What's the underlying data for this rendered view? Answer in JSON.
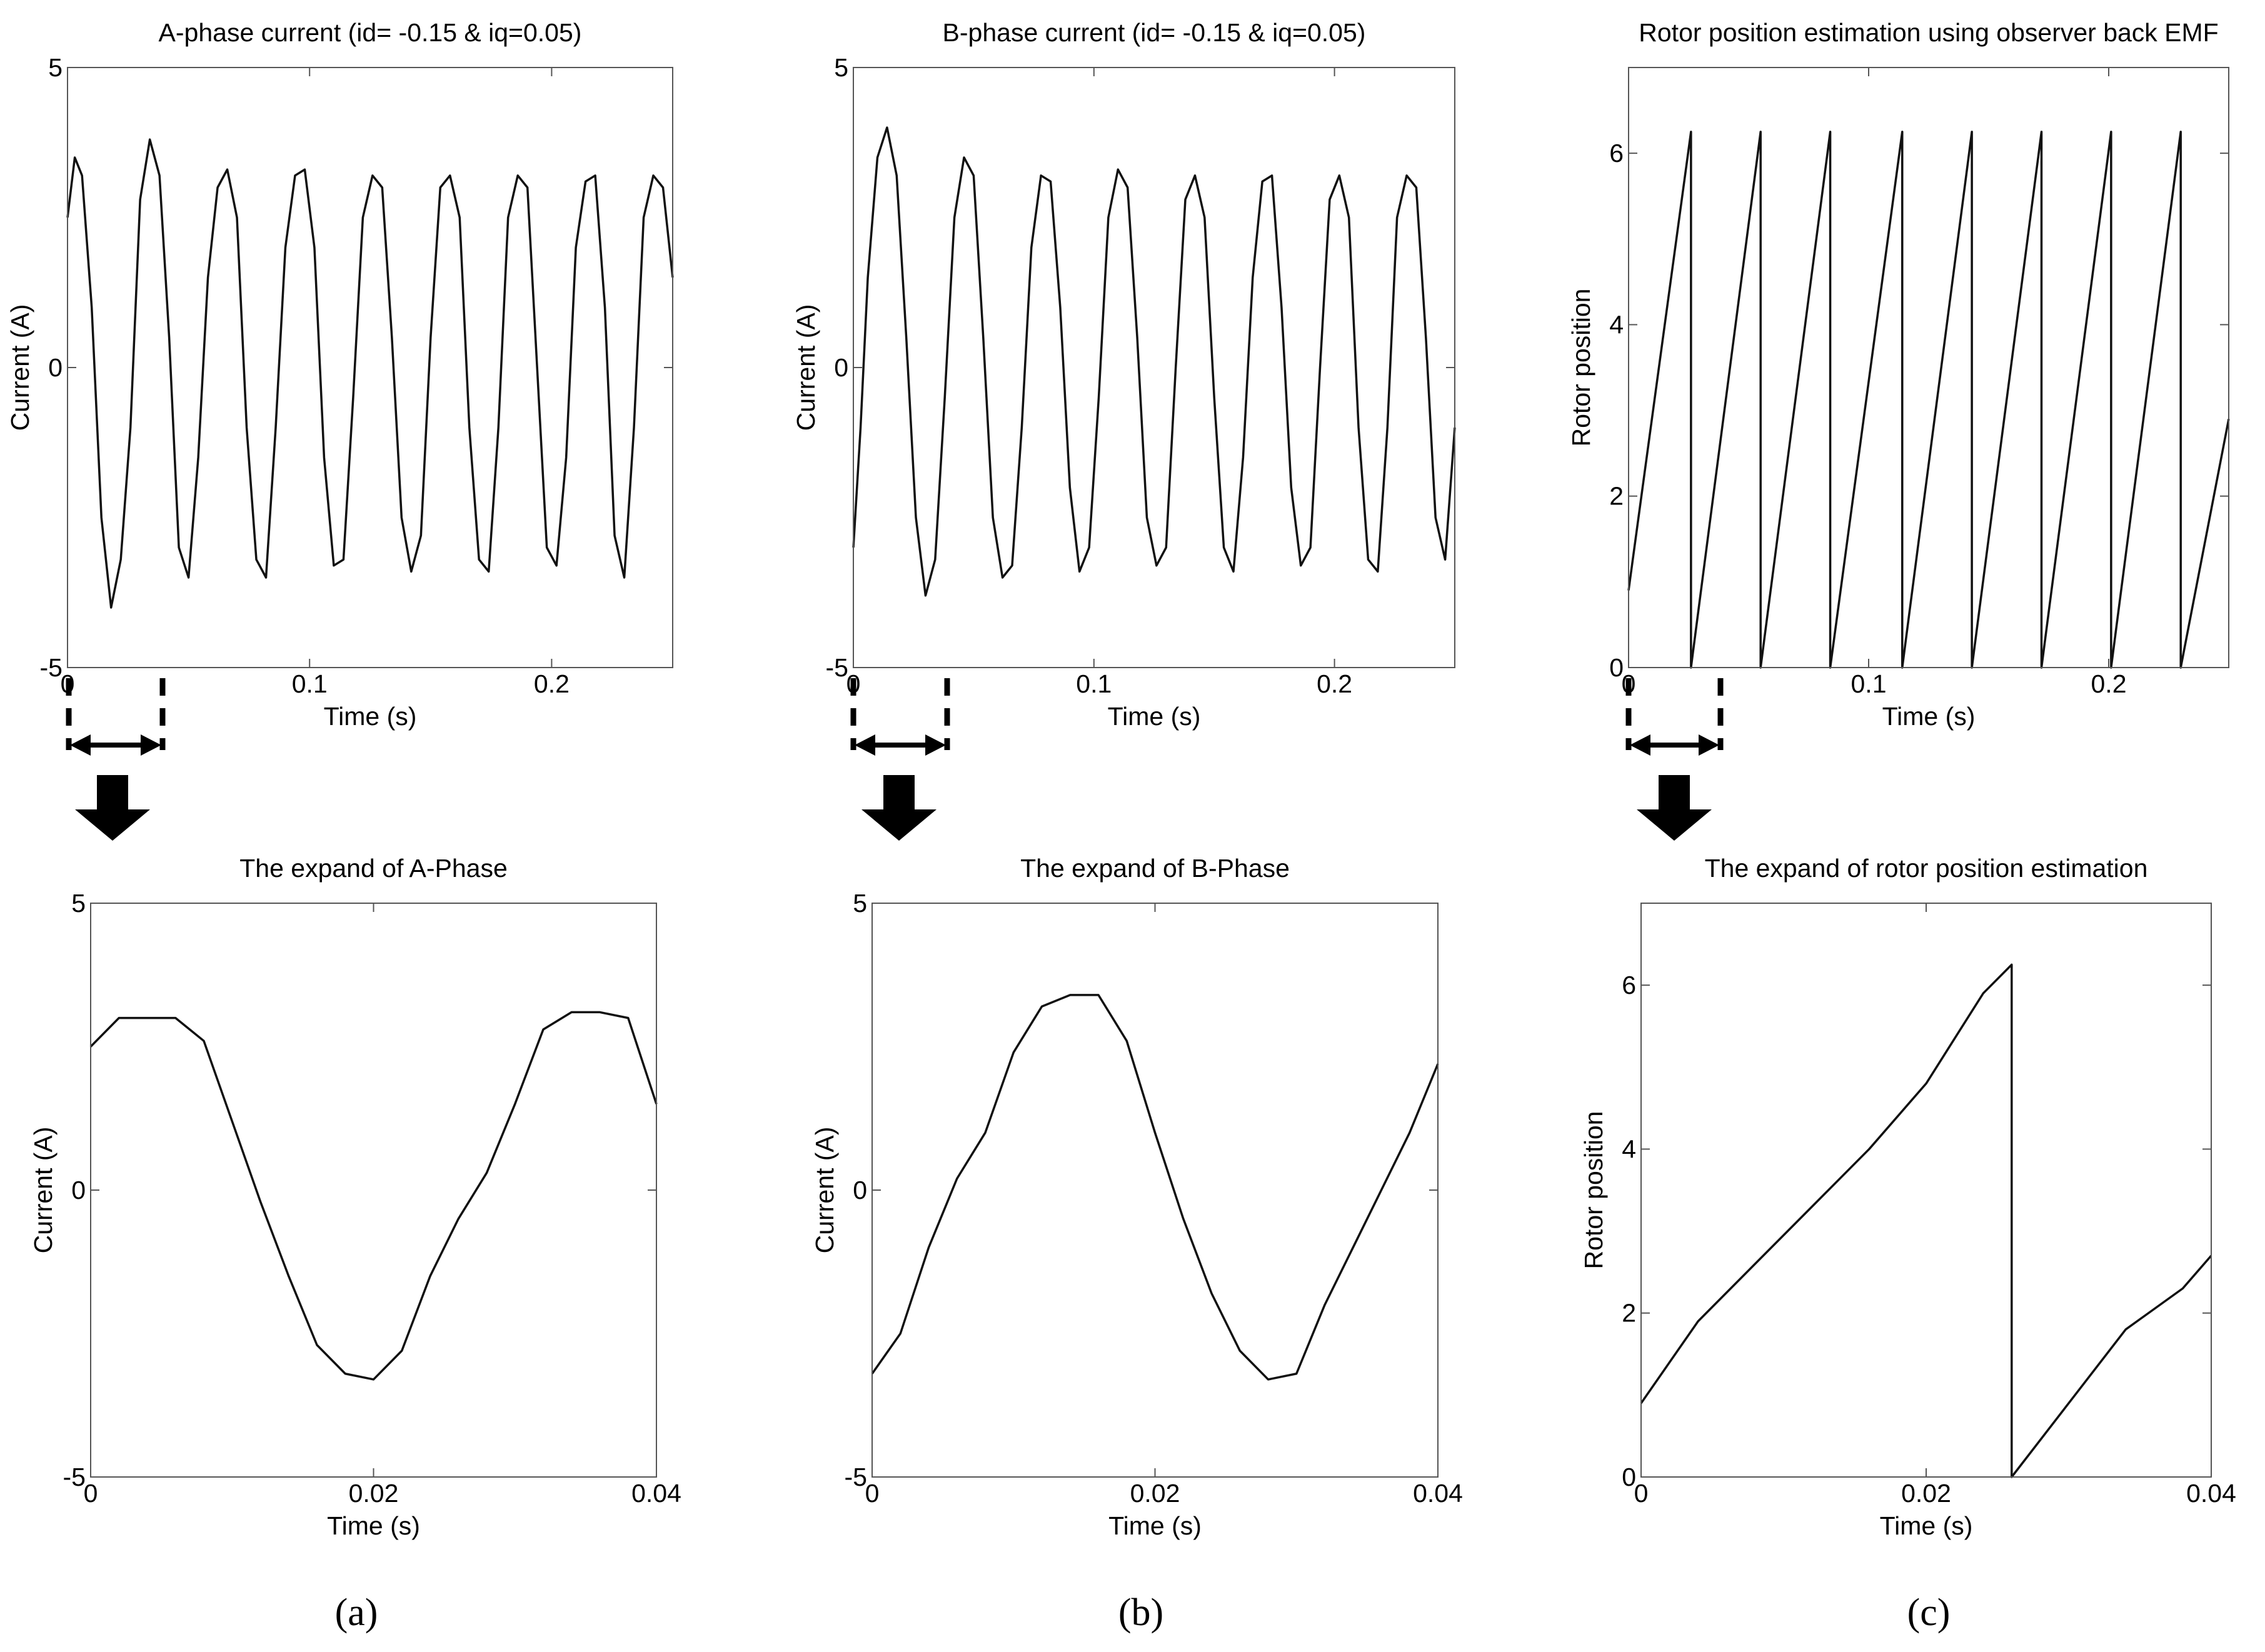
{
  "figure": {
    "captions": [
      "(a)",
      "(b)",
      "(c)"
    ]
  },
  "chart_data": [
    {
      "id": "a-top",
      "type": "line",
      "title": "A-phase current (id= -0.15 & iq=0.05)",
      "xlabel": "Time (s)",
      "ylabel": "Current (A)",
      "xlim": [
        0,
        0.25
      ],
      "ylim": [
        -5,
        5
      ],
      "xticks": [
        0,
        0.1,
        0.2
      ],
      "xtick_labels": [
        "0",
        "0.1",
        "0.2"
      ],
      "yticks": [
        -5,
        0,
        5
      ],
      "ytick_labels": [
        "-5",
        "0",
        "5"
      ],
      "series": [
        {
          "x": [
            0,
            0.003,
            0.006,
            0.01,
            0.014,
            0.018,
            0.022,
            0.026,
            0.03,
            0.034,
            0.038,
            0.042,
            0.046,
            0.05,
            0.054,
            0.058,
            0.062,
            0.066,
            0.07,
            0.074,
            0.078,
            0.082,
            0.086,
            0.09,
            0.094,
            0.098,
            0.102,
            0.106,
            0.11,
            0.114,
            0.118,
            0.122,
            0.126,
            0.13,
            0.134,
            0.138,
            0.142,
            0.146,
            0.15,
            0.154,
            0.158,
            0.162,
            0.166,
            0.17,
            0.174,
            0.178,
            0.182,
            0.186,
            0.19,
            0.194,
            0.198,
            0.202,
            0.206,
            0.21,
            0.214,
            0.218,
            0.222,
            0.226,
            0.23,
            0.234,
            0.238,
            0.242,
            0.246,
            0.25
          ],
          "y": [
            2.5,
            3.5,
            3.2,
            1.0,
            -2.5,
            -4.0,
            -3.2,
            -1.0,
            2.8,
            3.8,
            3.2,
            0.5,
            -3.0,
            -3.5,
            -1.5,
            1.5,
            3.0,
            3.3,
            2.5,
            -1.0,
            -3.2,
            -3.5,
            -1.0,
            2.0,
            3.2,
            3.3,
            2.0,
            -1.5,
            -3.3,
            -3.2,
            -0.5,
            2.5,
            3.2,
            3.0,
            0.5,
            -2.5,
            -3.4,
            -2.8,
            0.5,
            3.0,
            3.2,
            2.5,
            -1.0,
            -3.2,
            -3.4,
            -1.0,
            2.5,
            3.2,
            3.0,
            0.0,
            -3.0,
            -3.3,
            -1.5,
            2.0,
            3.1,
            3.2,
            1.0,
            -2.8,
            -3.5,
            -1.0,
            2.5,
            3.2,
            3.0,
            1.5
          ]
        }
      ]
    },
    {
      "id": "b-top",
      "type": "line",
      "title": "B-phase current (id= -0.15 & iq=0.05)",
      "xlabel": "Time (s)",
      "ylabel": "Current (A)",
      "xlim": [
        0,
        0.25
      ],
      "ylim": [
        -5,
        5
      ],
      "xticks": [
        0,
        0.1,
        0.2
      ],
      "xtick_labels": [
        "0",
        "0.1",
        "0.2"
      ],
      "yticks": [
        -5,
        0,
        5
      ],
      "ytick_labels": [
        "-5",
        "0",
        "5"
      ],
      "series": [
        {
          "x": [
            0,
            0.003,
            0.006,
            0.01,
            0.014,
            0.018,
            0.022,
            0.026,
            0.03,
            0.034,
            0.038,
            0.042,
            0.046,
            0.05,
            0.054,
            0.058,
            0.062,
            0.066,
            0.07,
            0.074,
            0.078,
            0.082,
            0.086,
            0.09,
            0.094,
            0.098,
            0.102,
            0.106,
            0.11,
            0.114,
            0.118,
            0.122,
            0.126,
            0.13,
            0.134,
            0.138,
            0.142,
            0.146,
            0.15,
            0.154,
            0.158,
            0.162,
            0.166,
            0.17,
            0.174,
            0.178,
            0.182,
            0.186,
            0.19,
            0.194,
            0.198,
            0.202,
            0.206,
            0.21,
            0.214,
            0.218,
            0.222,
            0.226,
            0.23,
            0.234,
            0.238,
            0.242,
            0.246,
            0.25
          ],
          "y": [
            -3.0,
            -1.0,
            1.5,
            3.5,
            4.0,
            3.2,
            0.5,
            -2.5,
            -3.8,
            -3.2,
            -0.5,
            2.5,
            3.5,
            3.2,
            0.5,
            -2.5,
            -3.5,
            -3.3,
            -1.0,
            2.0,
            3.2,
            3.1,
            1.0,
            -2.0,
            -3.4,
            -3.0,
            -0.5,
            2.5,
            3.3,
            3.0,
            0.5,
            -2.5,
            -3.3,
            -3.0,
            0.0,
            2.8,
            3.2,
            2.5,
            -0.5,
            -3.0,
            -3.4,
            -1.5,
            1.5,
            3.1,
            3.2,
            1.0,
            -2.0,
            -3.3,
            -3.0,
            0.0,
            2.8,
            3.2,
            2.5,
            -1.0,
            -3.2,
            -3.4,
            -1.0,
            2.5,
            3.2,
            3.0,
            0.5,
            -2.5,
            -3.2,
            -1.0
          ]
        }
      ]
    },
    {
      "id": "c-top",
      "type": "line",
      "title": "Rotor position estimation using observer back EMF",
      "xlabel": "Time (s)",
      "ylabel": "Rotor position",
      "xlim": [
        0,
        0.25
      ],
      "ylim": [
        0,
        7
      ],
      "xticks": [
        0,
        0.1,
        0.2
      ],
      "xtick_labels": [
        "0",
        "0.1",
        "0.2"
      ],
      "yticks": [
        0,
        2,
        4,
        6
      ],
      "ytick_labels": [
        "0",
        "2",
        "4",
        "6"
      ],
      "series": [
        {
          "x": [
            0,
            0.026,
            0.026,
            0.055,
            0.055,
            0.084,
            0.084,
            0.114,
            0.114,
            0.143,
            0.143,
            0.172,
            0.172,
            0.201,
            0.201,
            0.23,
            0.23,
            0.25
          ],
          "y": [
            0.9,
            6.25,
            0.0,
            6.25,
            0.0,
            6.25,
            0.0,
            6.25,
            0.0,
            6.25,
            0.0,
            6.25,
            0.0,
            6.25,
            0.0,
            6.25,
            0.0,
            2.9
          ]
        }
      ]
    },
    {
      "id": "a-bottom",
      "type": "line",
      "title": "The expand of A-Phase",
      "xlabel": "Time (s)",
      "ylabel": "Current (A)",
      "xlim": [
        0,
        0.04
      ],
      "ylim": [
        -5,
        5
      ],
      "xticks": [
        0,
        0.02,
        0.04
      ],
      "xtick_labels": [
        "0",
        "0.02",
        "0.04"
      ],
      "yticks": [
        -5,
        0,
        5
      ],
      "ytick_labels": [
        "-5",
        "0",
        "5"
      ],
      "series": [
        {
          "x": [
            0,
            0.002,
            0.004,
            0.006,
            0.008,
            0.01,
            0.012,
            0.014,
            0.016,
            0.018,
            0.02,
            0.022,
            0.024,
            0.026,
            0.028,
            0.03,
            0.032,
            0.034,
            0.036,
            0.038,
            0.04
          ],
          "y": [
            2.5,
            3.0,
            3.0,
            3.0,
            2.6,
            1.2,
            -0.2,
            -1.5,
            -2.7,
            -3.2,
            -3.3,
            -2.8,
            -1.5,
            -0.5,
            0.3,
            1.5,
            2.8,
            3.1,
            3.1,
            3.0,
            1.5
          ]
        }
      ]
    },
    {
      "id": "b-bottom",
      "type": "line",
      "title": "The expand of B-Phase",
      "xlabel": "Time (s)",
      "ylabel": "Current (A)",
      "xlim": [
        0,
        0.04
      ],
      "ylim": [
        -5,
        5
      ],
      "xticks": [
        0,
        0.02,
        0.04
      ],
      "xtick_labels": [
        "0",
        "0.02",
        "0.04"
      ],
      "yticks": [
        -5,
        0,
        5
      ],
      "ytick_labels": [
        "-5",
        "0",
        "5"
      ],
      "series": [
        {
          "x": [
            0,
            0.002,
            0.004,
            0.006,
            0.008,
            0.01,
            0.012,
            0.014,
            0.016,
            0.018,
            0.02,
            0.022,
            0.024,
            0.026,
            0.028,
            0.03,
            0.032,
            0.034,
            0.036,
            0.038,
            0.04
          ],
          "y": [
            -3.2,
            -2.5,
            -1.0,
            0.2,
            1.0,
            2.4,
            3.2,
            3.4,
            3.4,
            2.6,
            1.0,
            -0.5,
            -1.8,
            -2.8,
            -3.3,
            -3.2,
            -2.0,
            -1.0,
            0.0,
            1.0,
            2.2
          ]
        }
      ]
    },
    {
      "id": "c-bottom",
      "type": "line",
      "title": "The expand of rotor position estimation",
      "xlabel": "Time (s)",
      "ylabel": "Rotor position",
      "xlim": [
        0,
        0.04
      ],
      "ylim": [
        0,
        7
      ],
      "xticks": [
        0,
        0.02,
        0.04
      ],
      "xtick_labels": [
        "0",
        "0.02",
        "0.04"
      ],
      "yticks": [
        0,
        2,
        4,
        6
      ],
      "ytick_labels": [
        "0",
        "2",
        "4",
        "6"
      ],
      "series": [
        {
          "x": [
            0,
            0.004,
            0.008,
            0.012,
            0.016,
            0.02,
            0.024,
            0.026,
            0.026,
            0.03,
            0.034,
            0.038,
            0.04
          ],
          "y": [
            0.9,
            1.9,
            2.6,
            3.3,
            4.0,
            4.8,
            5.9,
            6.25,
            0.0,
            0.9,
            1.8,
            2.3,
            2.7
          ]
        }
      ]
    }
  ]
}
